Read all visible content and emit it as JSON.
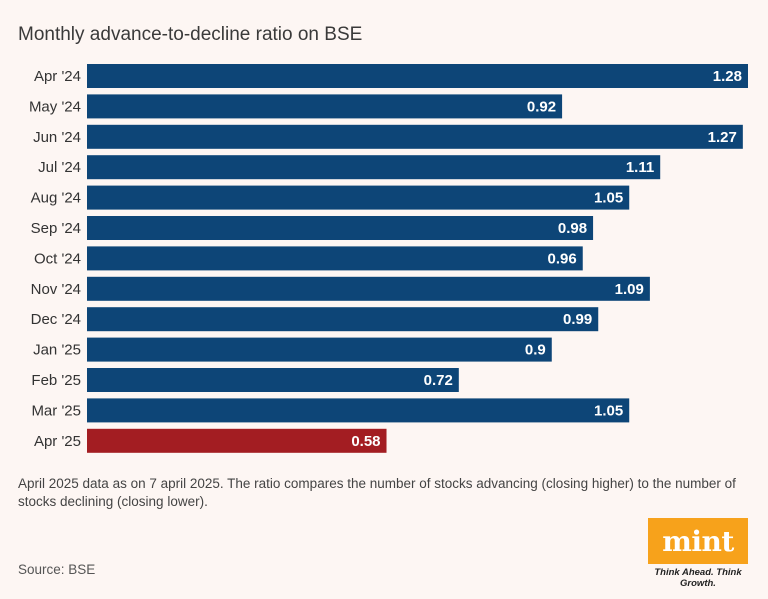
{
  "header": {
    "title": "Monthly advance-to-decline ratio on BSE"
  },
  "chart_data": {
    "type": "bar",
    "orientation": "horizontal",
    "title": "Monthly advance-to-decline ratio on BSE",
    "categories": [
      "Apr '24",
      "May '24",
      "Jun '24",
      "Jul '24",
      "Aug '24",
      "Sep '24",
      "Oct '24",
      "Nov '24",
      "Dec '24",
      "Jan '25",
      "Feb '25",
      "Mar '25",
      "Apr '25"
    ],
    "values": [
      1.28,
      0.92,
      1.27,
      1.11,
      1.05,
      0.98,
      0.96,
      1.09,
      0.99,
      0.9,
      0.72,
      1.05,
      0.58
    ],
    "value_labels": [
      "1.28",
      "0.92",
      "1.27",
      "1.11",
      "1.05",
      "0.98",
      "0.96",
      "1.09",
      "0.99",
      "0.9",
      "0.72",
      "1.05",
      "0.58"
    ],
    "colors": {
      "default": "#0d4577",
      "highlight": "#a31d22"
    },
    "highlight_index": 12,
    "xlim": [
      0,
      1.28
    ]
  },
  "footnote": "April 2025 data as on 7 april 2025. The ratio compares the number of stocks advancing (closing higher) to the number of stocks declining (closing lower).",
  "source": "Source: BSE",
  "logo": {
    "word": "mint",
    "tagline": "Think Ahead. Think Growth.",
    "color": "#f7a21b"
  }
}
